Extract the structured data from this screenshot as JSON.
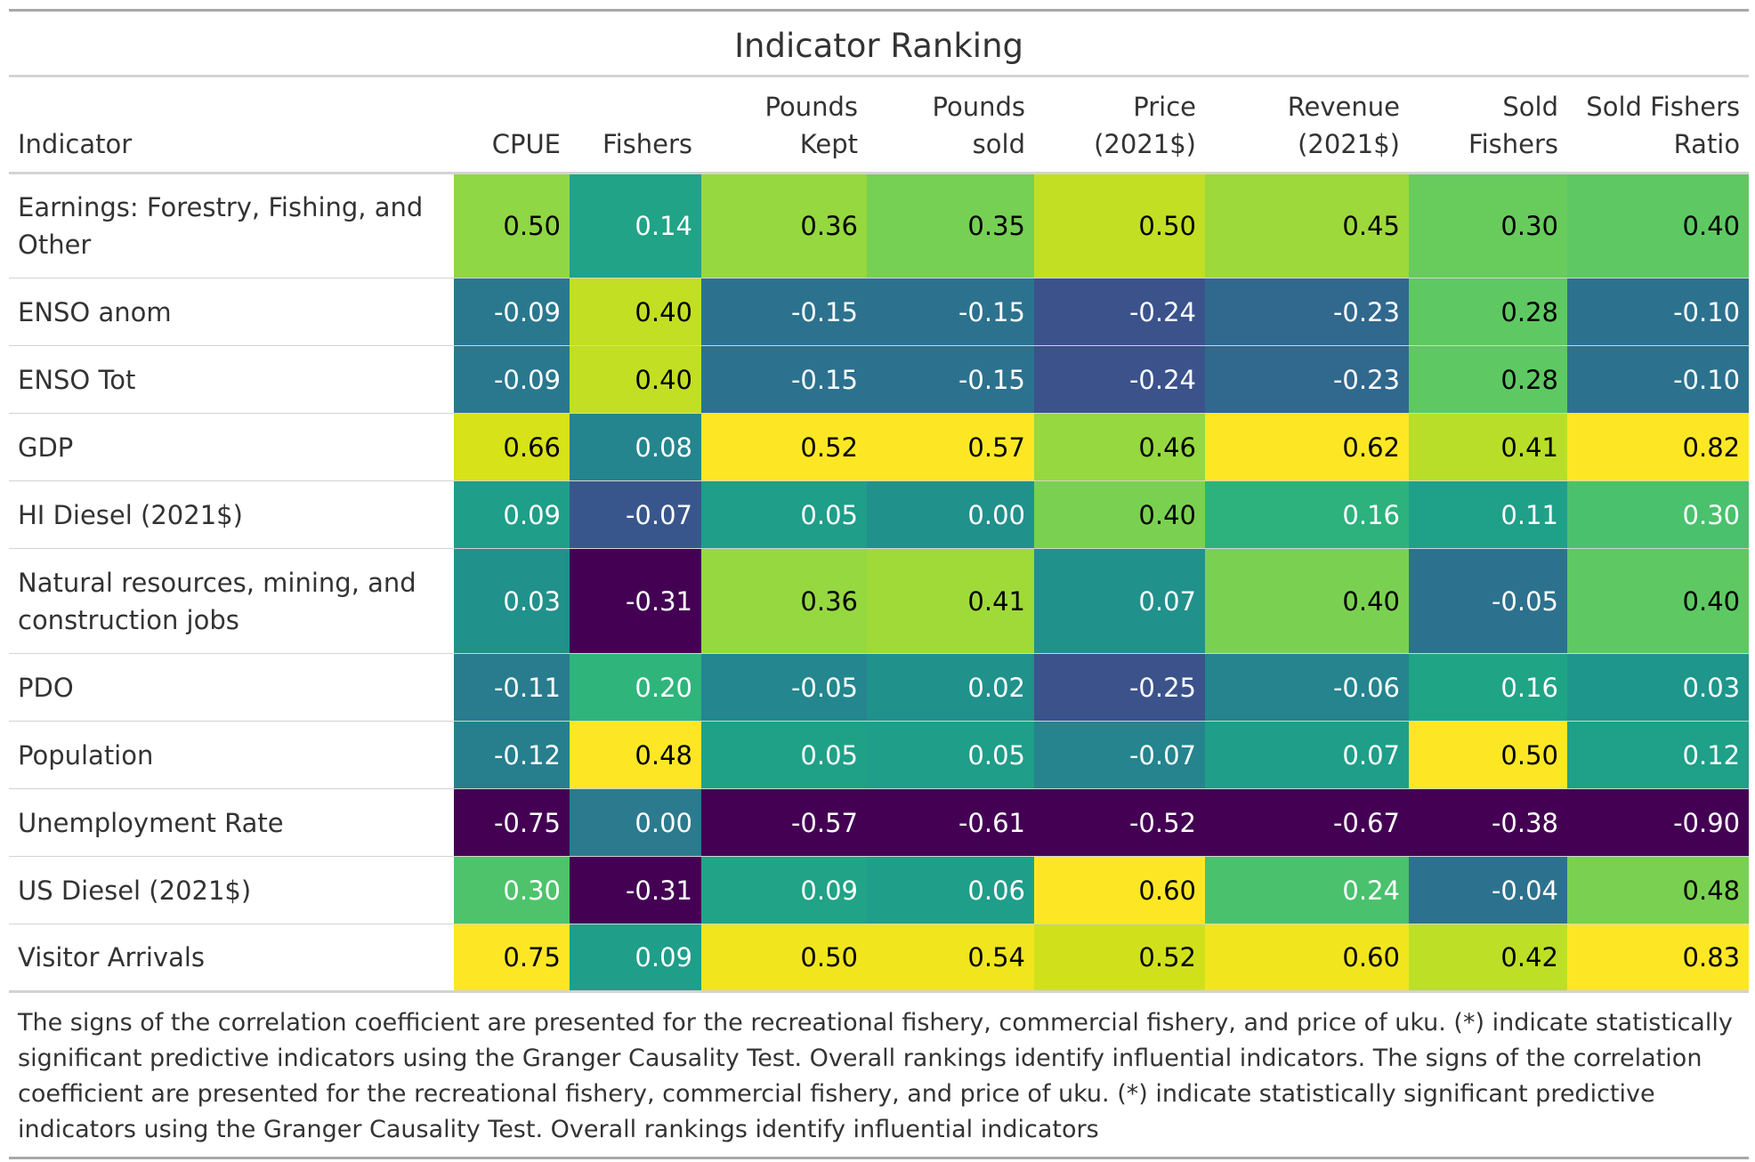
{
  "title": "Indicator Ranking",
  "columns": [
    {
      "lines": [
        "",
        "Indicator"
      ]
    },
    {
      "lines": [
        "",
        "CPUE"
      ]
    },
    {
      "lines": [
        "",
        "Fishers"
      ]
    },
    {
      "lines": [
        "Pounds",
        "Kept"
      ]
    },
    {
      "lines": [
        "Pounds",
        "sold"
      ]
    },
    {
      "lines": [
        "Price",
        "(2021$)"
      ]
    },
    {
      "lines": [
        "Revenue",
        "(2021$)"
      ]
    },
    {
      "lines": [
        "Sold",
        "Fishers"
      ]
    },
    {
      "lines": [
        "Sold Fishers",
        "Ratio"
      ]
    }
  ],
  "rows": [
    {
      "indicator": "Earnings: Forestry, Fishing, and Other",
      "wrap": true,
      "cells": [
        {
          "v": "0.50",
          "bg": "#8fd744"
        },
        {
          "v": "0.14",
          "bg": "#20a386"
        },
        {
          "v": "0.36",
          "bg": "#95d840"
        },
        {
          "v": "0.35",
          "bg": "#75d054"
        },
        {
          "v": "0.50",
          "bg": "#c2df23"
        },
        {
          "v": "0.45",
          "bg": "#9dd93b"
        },
        {
          "v": "0.30",
          "bg": "#67cc5c"
        },
        {
          "v": "0.40",
          "bg": "#5ec962"
        }
      ]
    },
    {
      "indicator": "ENSO anom",
      "wrap": false,
      "cells": [
        {
          "v": "-0.09",
          "bg": "#2a788e"
        },
        {
          "v": "0.40",
          "bg": "#c2df23"
        },
        {
          "v": "-0.15",
          "bg": "#2c728e"
        },
        {
          "v": "-0.15",
          "bg": "#2c728e"
        },
        {
          "v": "-0.24",
          "bg": "#3b528b"
        },
        {
          "v": "-0.23",
          "bg": "#31688e"
        },
        {
          "v": "0.28",
          "bg": "#5ec962"
        },
        {
          "v": "-0.10",
          "bg": "#2c728e"
        }
      ]
    },
    {
      "indicator": "ENSO Tot",
      "wrap": false,
      "cells": [
        {
          "v": "-0.09",
          "bg": "#2a788e"
        },
        {
          "v": "0.40",
          "bg": "#c2df23"
        },
        {
          "v": "-0.15",
          "bg": "#2c728e"
        },
        {
          "v": "-0.15",
          "bg": "#2c728e"
        },
        {
          "v": "-0.24",
          "bg": "#3b528b"
        },
        {
          "v": "-0.23",
          "bg": "#31688e"
        },
        {
          "v": "0.28",
          "bg": "#5ec962"
        },
        {
          "v": "-0.10",
          "bg": "#2c728e"
        }
      ]
    },
    {
      "indicator": "GDP",
      "wrap": false,
      "cells": [
        {
          "v": "0.66",
          "bg": "#d8e219"
        },
        {
          "v": "0.08",
          "bg": "#25858e"
        },
        {
          "v": "0.52",
          "bg": "#fde725"
        },
        {
          "v": "0.57",
          "bg": "#fde725"
        },
        {
          "v": "0.46",
          "bg": "#95d840"
        },
        {
          "v": "0.62",
          "bg": "#fde725"
        },
        {
          "v": "0.41",
          "bg": "#b8de29"
        },
        {
          "v": "0.82",
          "bg": "#fde725"
        }
      ]
    },
    {
      "indicator": "HI Diesel (2021$)",
      "wrap": false,
      "cells": [
        {
          "v": "0.09",
          "bg": "#1f9e89"
        },
        {
          "v": "-0.07",
          "bg": "#39568c"
        },
        {
          "v": "0.05",
          "bg": "#1f9e89"
        },
        {
          "v": "0.00",
          "bg": "#21918c"
        },
        {
          "v": "0.40",
          "bg": "#7ad151"
        },
        {
          "v": "0.16",
          "bg": "#2db27d"
        },
        {
          "v": "0.11",
          "bg": "#1fa088"
        },
        {
          "v": "0.30",
          "bg": "#4ac16d"
        }
      ]
    },
    {
      "indicator": "Natural resources, mining, and construction jobs",
      "wrap": true,
      "cells": [
        {
          "v": "0.03",
          "bg": "#21918c"
        },
        {
          "v": "-0.31",
          "bg": "#440154"
        },
        {
          "v": "0.36",
          "bg": "#95d840"
        },
        {
          "v": "0.41",
          "bg": "#a0da39"
        },
        {
          "v": "0.07",
          "bg": "#21918c"
        },
        {
          "v": "0.40",
          "bg": "#7ad151"
        },
        {
          "v": "-0.05",
          "bg": "#2c728e"
        },
        {
          "v": "0.40",
          "bg": "#5ec962"
        }
      ]
    },
    {
      "indicator": "PDO",
      "wrap": false,
      "cells": [
        {
          "v": "-0.11",
          "bg": "#287c8e"
        },
        {
          "v": "0.20",
          "bg": "#2fb47c"
        },
        {
          "v": "-0.05",
          "bg": "#24868e"
        },
        {
          "v": "0.02",
          "bg": "#21918c"
        },
        {
          "v": "-0.25",
          "bg": "#3b528b"
        },
        {
          "v": "-0.06",
          "bg": "#25848e"
        },
        {
          "v": "0.16",
          "bg": "#20a486"
        },
        {
          "v": "0.03",
          "bg": "#1f968b"
        }
      ]
    },
    {
      "indicator": "Population",
      "wrap": false,
      "cells": [
        {
          "v": "-0.12",
          "bg": "#277f8e"
        },
        {
          "v": "0.48",
          "bg": "#fde725"
        },
        {
          "v": "0.05",
          "bg": "#1fa187"
        },
        {
          "v": "0.05",
          "bg": "#1f9e89"
        },
        {
          "v": "-0.07",
          "bg": "#25848e"
        },
        {
          "v": "0.07",
          "bg": "#1f9e89"
        },
        {
          "v": "0.50",
          "bg": "#fde725"
        },
        {
          "v": "0.12",
          "bg": "#1fa088"
        }
      ]
    },
    {
      "indicator": "Unemployment Rate",
      "wrap": false,
      "cells": [
        {
          "v": "-0.75",
          "bg": "#440154"
        },
        {
          "v": "0.00",
          "bg": "#2c7a8e"
        },
        {
          "v": "-0.57",
          "bg": "#440154"
        },
        {
          "v": "-0.61",
          "bg": "#440154"
        },
        {
          "v": "-0.52",
          "bg": "#440154"
        },
        {
          "v": "-0.67",
          "bg": "#440154"
        },
        {
          "v": "-0.38",
          "bg": "#440154"
        },
        {
          "v": "-0.90",
          "bg": "#440154"
        }
      ]
    },
    {
      "indicator": "US Diesel (2021$)",
      "wrap": false,
      "cells": [
        {
          "v": "0.30",
          "bg": "#4ec36b"
        },
        {
          "v": "-0.31",
          "bg": "#440154"
        },
        {
          "v": "0.09",
          "bg": "#20a386"
        },
        {
          "v": "0.06",
          "bg": "#1f9e89"
        },
        {
          "v": "0.60",
          "bg": "#fde725"
        },
        {
          "v": "0.24",
          "bg": "#4ac16d"
        },
        {
          "v": "-0.04",
          "bg": "#2c728e"
        },
        {
          "v": "0.48",
          "bg": "#7ad151"
        }
      ]
    },
    {
      "indicator": "Visitor Arrivals",
      "wrap": false,
      "cells": [
        {
          "v": "0.75",
          "bg": "#fde725"
        },
        {
          "v": "0.09",
          "bg": "#1f9e89"
        },
        {
          "v": "0.50",
          "bg": "#f1e51d"
        },
        {
          "v": "0.54",
          "bg": "#f1e51d"
        },
        {
          "v": "0.52",
          "bg": "#d0e11c"
        },
        {
          "v": "0.60",
          "bg": "#f1e51d"
        },
        {
          "v": "0.42",
          "bg": "#bddf26"
        },
        {
          "v": "0.83",
          "bg": "#fde725"
        }
      ]
    }
  ],
  "footnote": "The signs of the correlation coefficient are presented for the recreational fishery, commercial fishery, and price of uku. (*) indicate statistically significant predictive indicators using the Granger Causality Test. Overall rankings identify influential indicators. The signs of the correlation coefficient are presented for the recreational fishery, commercial fishery, and price of uku. (*) indicate statistically significant predictive indicators using the Granger Causality Test. Overall rankings identify influential indicators"
}
